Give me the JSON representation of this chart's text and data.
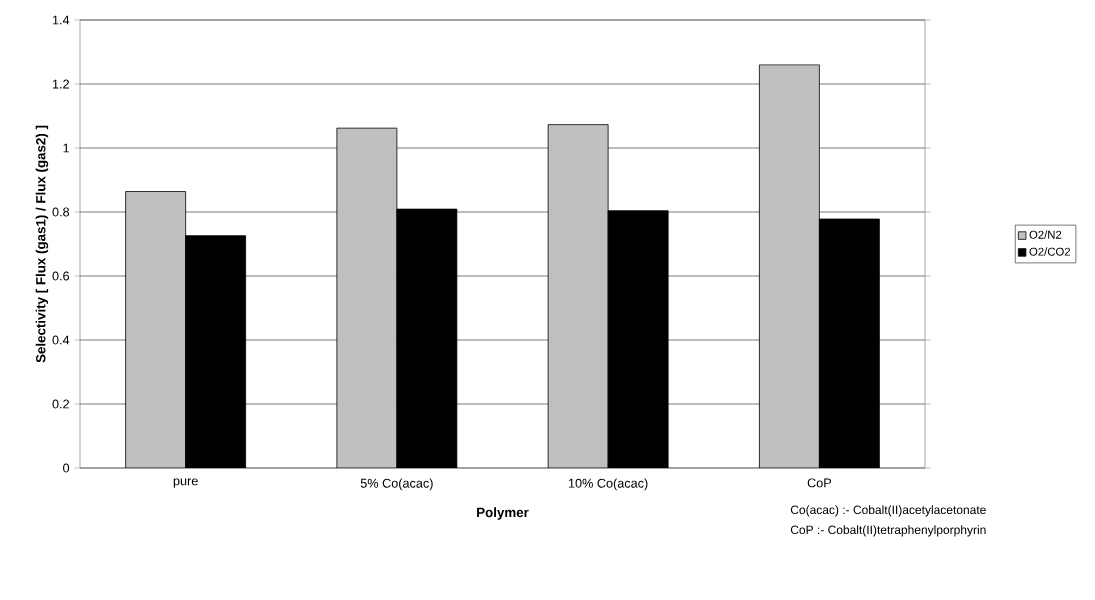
{
  "chart_data": {
    "type": "bar",
    "xlabel": "Polymer",
    "ylabel": "Selectivity [ Flux (gas1) / Flux (gas2) ]",
    "categories": [
      "pure",
      "5% Co(acac)",
      "10% Co(acac)",
      "CoP"
    ],
    "series": [
      {
        "name": "O2/N2",
        "color": "#c0c0c0",
        "values": [
          0.864,
          1.062,
          1.073,
          1.26
        ]
      },
      {
        "name": "O2/CO2",
        "color": "#000000",
        "values": [
          0.726,
          0.809,
          0.804,
          0.778
        ]
      }
    ],
    "ylim": [
      0,
      1.4
    ],
    "yticks": [
      0,
      0.2,
      0.4,
      0.6,
      0.8,
      1,
      1.2,
      1.4
    ],
    "grid": "y",
    "legend": "right",
    "annotations": [
      "Co(acac) :- Cobalt(II)acetylacetonate",
      "CoP :- Cobalt(II)tetraphenylporphyrin"
    ]
  }
}
